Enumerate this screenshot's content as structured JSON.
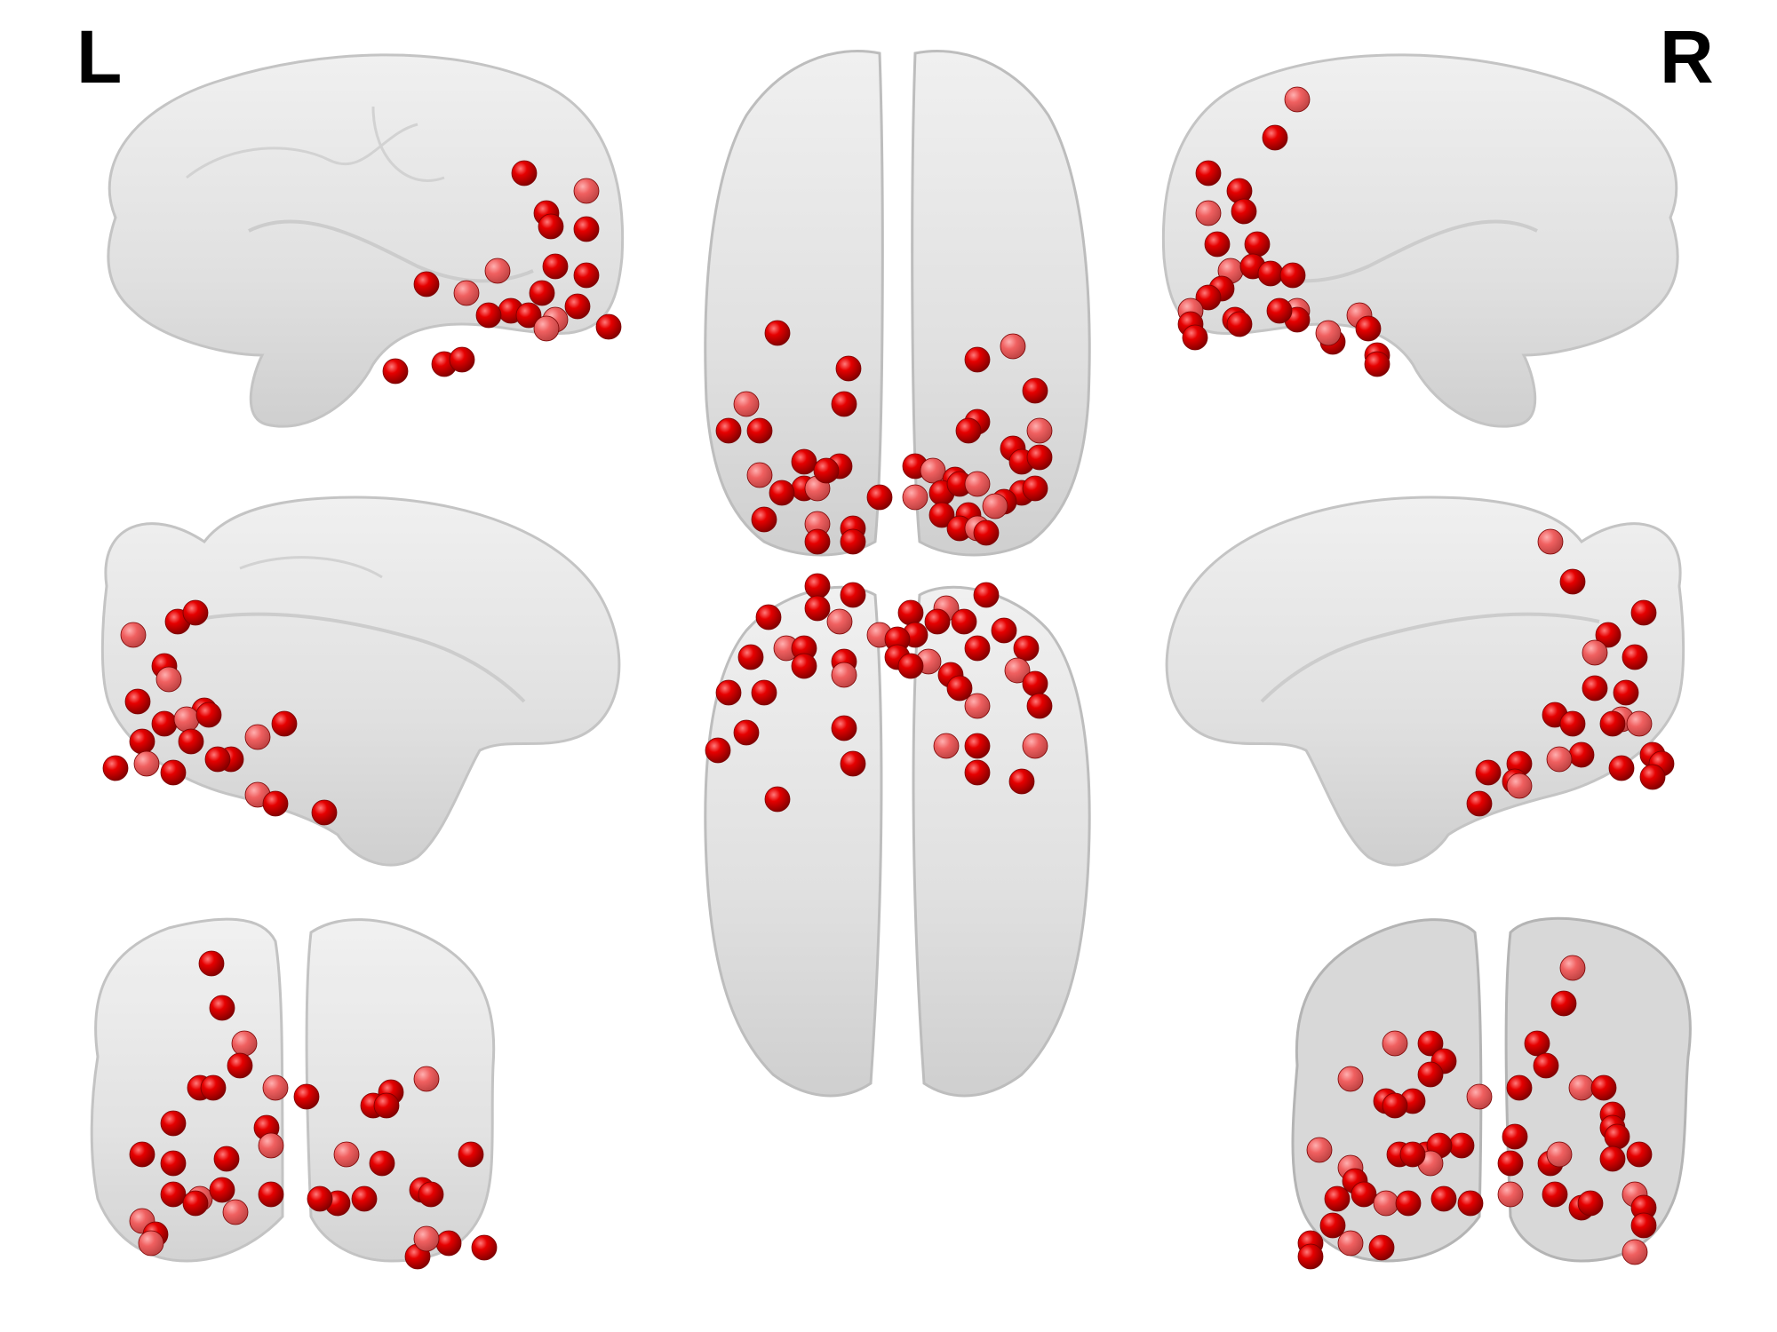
{
  "hemisphere_labels": {
    "left": "L",
    "right": "R"
  },
  "colors": {
    "background": "#ffffff",
    "brain_surface": "#e2e2e2",
    "brain_outline": "#bdbdbd",
    "node": "#dd0000",
    "node_dark": "#7a0000",
    "label_text": "#000000"
  },
  "views": [
    "left-lateral",
    "left-medial",
    "posterior-left",
    "superior",
    "inferior",
    "right-lateral",
    "right-medial",
    "posterior-right"
  ]
}
